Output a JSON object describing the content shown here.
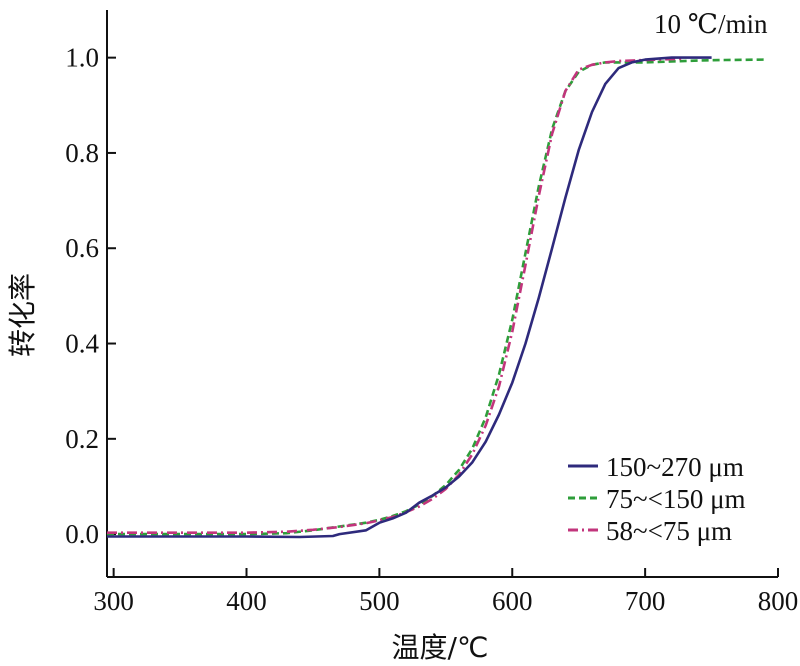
{
  "chart_data": {
    "type": "line",
    "title": "",
    "annotation": "10 ℃/min",
    "xlabel": "温度/℃",
    "ylabel": "转化率",
    "xlim": [
      295,
      800
    ],
    "ylim": [
      -0.09,
      1.1
    ],
    "xticks": [
      300,
      400,
      500,
      600,
      700,
      800
    ],
    "xtick_labels": [
      "300",
      "400",
      "500",
      "600",
      "700",
      "800"
    ],
    "yticks": [
      0.0,
      0.2,
      0.4,
      0.6,
      0.8,
      1.0
    ],
    "ytick_labels": [
      "0.0",
      "0.2",
      "0.4",
      "0.6",
      "0.8",
      "1.0"
    ],
    "grid": false,
    "legend_position": "bottom-right",
    "series": [
      {
        "name": "150~270 μm",
        "color": "#2e2a7c",
        "style": "solid",
        "x": [
          295,
          350,
          400,
          440,
          465,
          470,
          490,
          500,
          510,
          520,
          530,
          540,
          550,
          560,
          570,
          580,
          590,
          600,
          610,
          620,
          630,
          640,
          650,
          660,
          670,
          680,
          690,
          700,
          720,
          740,
          750
        ],
        "y": [
          -0.005,
          -0.005,
          -0.005,
          -0.006,
          -0.004,
          0.0,
          0.008,
          0.024,
          0.033,
          0.045,
          0.066,
          0.081,
          0.098,
          0.121,
          0.151,
          0.194,
          0.251,
          0.318,
          0.4,
          0.496,
          0.6,
          0.706,
          0.806,
          0.886,
          0.945,
          0.978,
          0.99,
          0.996,
          1.0,
          1.0,
          1.0
        ]
      },
      {
        "name": "75~<150 μm",
        "color": "#2e9e3a",
        "style": "dashed",
        "x": [
          295,
          350,
          400,
          430,
          450,
          470,
          490,
          500,
          510,
          520,
          530,
          540,
          550,
          560,
          570,
          580,
          590,
          600,
          610,
          620,
          630,
          640,
          650,
          660,
          670,
          680,
          700,
          720,
          740,
          760,
          790
        ],
        "y": [
          0.0,
          0.0,
          0.0,
          0.002,
          0.008,
          0.016,
          0.024,
          0.03,
          0.038,
          0.048,
          0.062,
          0.08,
          0.103,
          0.135,
          0.18,
          0.245,
          0.335,
          0.45,
          0.59,
          0.73,
          0.85,
          0.93,
          0.97,
          0.985,
          0.99,
          0.99,
          0.99,
          0.992,
          0.994,
          0.995,
          0.996
        ]
      },
      {
        "name": "58~<75 μm",
        "color": "#c2357c",
        "style": "dashdot",
        "x": [
          295,
          350,
          400,
          430,
          450,
          470,
          490,
          500,
          510,
          520,
          530,
          540,
          550,
          560,
          570,
          580,
          590,
          600,
          610,
          620,
          630,
          640,
          650,
          660,
          670,
          680,
          700,
          720,
          730
        ],
        "y": [
          0.003,
          0.003,
          0.003,
          0.005,
          0.009,
          0.015,
          0.023,
          0.029,
          0.036,
          0.046,
          0.058,
          0.074,
          0.095,
          0.125,
          0.168,
          0.228,
          0.31,
          0.425,
          0.565,
          0.71,
          0.84,
          0.93,
          0.975,
          0.985,
          0.99,
          0.993,
          0.995,
          0.997,
          0.998
        ]
      }
    ]
  }
}
